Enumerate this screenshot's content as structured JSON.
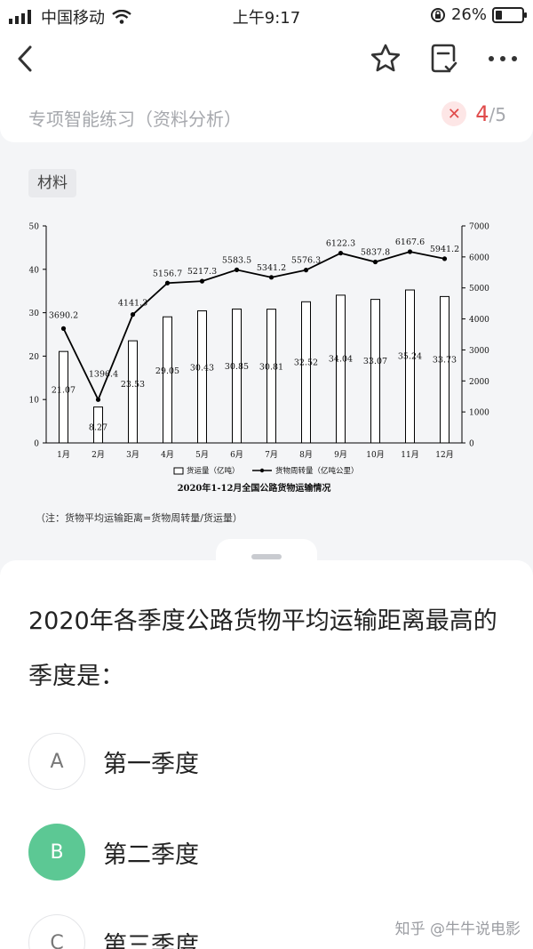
{
  "status_bar": {
    "carrier": "中国移动",
    "time": "上午9:17",
    "battery": "26%"
  },
  "practice": {
    "title": "专项智能练习（资料分析）",
    "current": "4",
    "total": "/5"
  },
  "material": {
    "tag": "材料",
    "note": "（注：货物平均运输距离=货物周转量/货运量）"
  },
  "chart_data": {
    "type": "bar",
    "title": "2020年1-12月全国公路货物运输情况",
    "categories": [
      "1月",
      "2月",
      "3月",
      "4月",
      "5月",
      "6月",
      "7月",
      "8月",
      "9月",
      "10月",
      "11月",
      "12月"
    ],
    "series": [
      {
        "name": "货运量（亿吨）",
        "type": "bar",
        "axis": "left",
        "values": [
          21.07,
          8.27,
          23.53,
          29.05,
          30.43,
          30.85,
          30.81,
          32.52,
          34.04,
          33.07,
          35.24,
          33.73
        ]
      },
      {
        "name": "货物周转量（亿吨公里）",
        "type": "line",
        "axis": "right",
        "values": [
          3690.2,
          1396.4,
          4141.3,
          5156.7,
          5217.3,
          5583.5,
          5341.2,
          5576.3,
          6122.3,
          5837.8,
          6167.6,
          5941.2
        ]
      }
    ],
    "ylim_left": [
      0,
      50
    ],
    "yticks_left": [
      "0",
      "10",
      "20",
      "30",
      "40",
      "50"
    ],
    "ylim_right": [
      0,
      7000
    ],
    "yticks_right": [
      "0",
      "1000",
      "2000",
      "3000",
      "4000",
      "5000",
      "6000",
      "7000"
    ],
    "legend_position": "bottom"
  },
  "question": {
    "text": "2020年各季度公路货物平均运输距离最高的季度是："
  },
  "options": [
    {
      "letter": "A",
      "text": "第一季度",
      "selected": false
    },
    {
      "letter": "B",
      "text": "第二季度",
      "selected": true
    },
    {
      "letter": "C",
      "text": "第三季度",
      "selected": false
    }
  ],
  "watermark": "知乎 @牛牛说电影",
  "colors": {
    "accent_green": "#5cc894",
    "error_red": "#e04b4b"
  }
}
